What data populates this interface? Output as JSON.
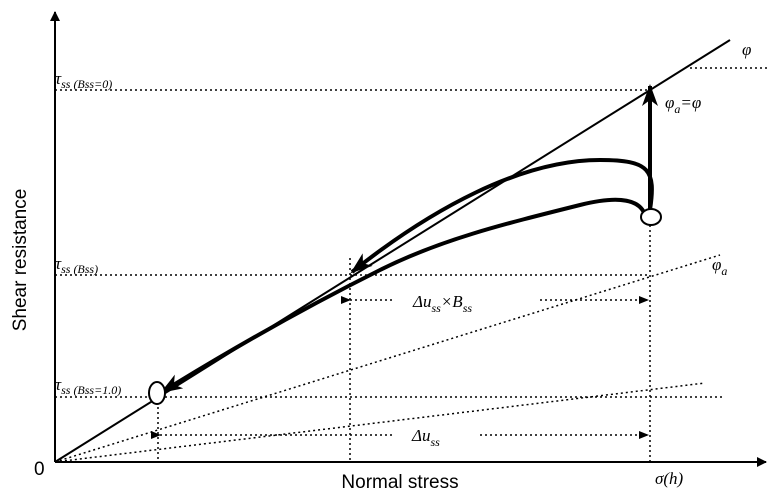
{
  "axes": {
    "y_label": "Shear resistance",
    "x_label": "Normal stress",
    "origin": "0",
    "x_end": {
      "main": "σ",
      "rest": "(h)"
    }
  },
  "levels": [
    {
      "main": "τ",
      "sub": "ss",
      "paren": " (Bss=0)"
    },
    {
      "main": "τ",
      "sub": "ss",
      "paren": " (Bss)"
    },
    {
      "main": "τ",
      "sub": "ss",
      "paren": " (Bss=1.0)"
    }
  ],
  "angles": {
    "phi": "φ",
    "phi_a_eq": {
      "main": "φ",
      "sub": "a",
      "rest": "=φ"
    },
    "phi_a": {
      "main": "φ",
      "sub": "a"
    }
  },
  "dimensions": {
    "upper": {
      "a": "Δu",
      "a_sub": "ss",
      "times": "×B",
      "b_sub": "ss"
    },
    "lower": {
      "a": "Δu",
      "a_sub": "ss"
    }
  }
}
